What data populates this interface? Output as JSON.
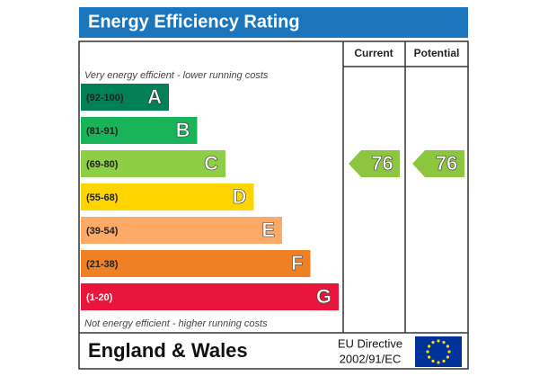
{
  "title": "Energy Efficiency Rating",
  "columns": {
    "current": "Current",
    "potential": "Potential"
  },
  "top_note": "Very energy efficient - lower running costs",
  "bottom_note": "Not energy efficient - higher running costs",
  "bands": [
    {
      "range": "(92-100)",
      "letter": "A",
      "color": "#008054"
    },
    {
      "range": "(81-91)",
      "letter": "B",
      "color": "#19b459"
    },
    {
      "range": "(69-80)",
      "letter": "C",
      "color": "#8dce46"
    },
    {
      "range": "(55-68)",
      "letter": "D",
      "color": "#ffd500"
    },
    {
      "range": "(39-54)",
      "letter": "E",
      "color": "#fcaa65"
    },
    {
      "range": "(21-38)",
      "letter": "F",
      "color": "#ef8023"
    },
    {
      "range": "(1-20)",
      "letter": "G",
      "color": "#e9153b"
    }
  ],
  "ratings": {
    "current": 76,
    "potential": 76,
    "color": "#8cc63f"
  },
  "footer": {
    "region": "England & Wales",
    "directive_line1": "EU Directive",
    "directive_line2": "2002/91/EC"
  }
}
